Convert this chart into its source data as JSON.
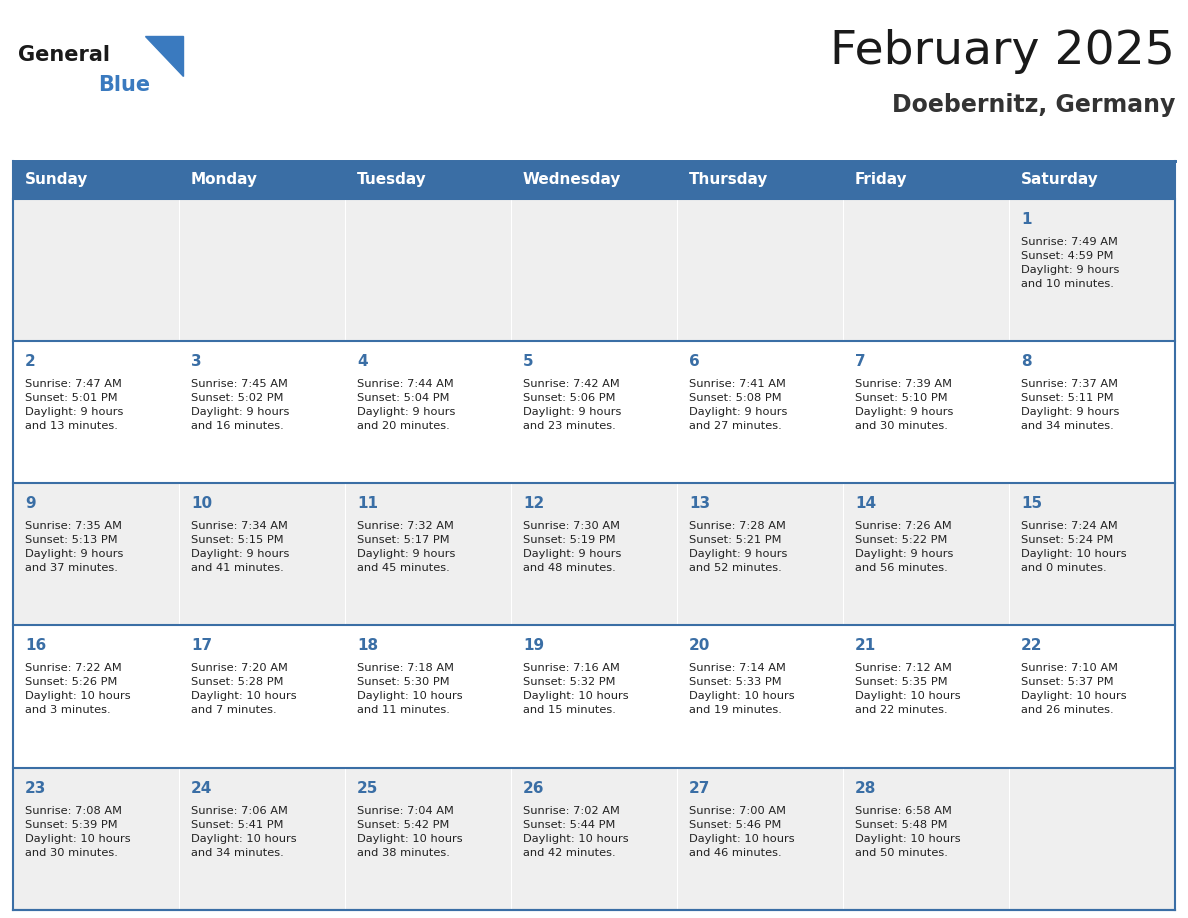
{
  "title": "February 2025",
  "subtitle": "Doebernitz, Germany",
  "days_of_week": [
    "Sunday",
    "Monday",
    "Tuesday",
    "Wednesday",
    "Thursday",
    "Friday",
    "Saturday"
  ],
  "header_bg": "#3a6ea5",
  "header_text": "#FFFFFF",
  "cell_bg_light": "#EFEFEF",
  "cell_bg_white": "#FFFFFF",
  "cell_border": "#3a6ea5",
  "day_number_color": "#3a6ea5",
  "text_color": "#222222",
  "logo_general_color": "#1a1a1a",
  "logo_blue_color": "#3a7abf",
  "logo_triangle_color": "#3a7abf",
  "title_color": "#1a1a1a",
  "subtitle_color": "#333333",
  "calendar": [
    [
      null,
      null,
      null,
      null,
      null,
      null,
      1
    ],
    [
      2,
      3,
      4,
      5,
      6,
      7,
      8
    ],
    [
      9,
      10,
      11,
      12,
      13,
      14,
      15
    ],
    [
      16,
      17,
      18,
      19,
      20,
      21,
      22
    ],
    [
      23,
      24,
      25,
      26,
      27,
      28,
      null
    ]
  ],
  "sunrise_data": {
    "1": "Sunrise: 7:49 AM\nSunset: 4:59 PM\nDaylight: 9 hours\nand 10 minutes.",
    "2": "Sunrise: 7:47 AM\nSunset: 5:01 PM\nDaylight: 9 hours\nand 13 minutes.",
    "3": "Sunrise: 7:45 AM\nSunset: 5:02 PM\nDaylight: 9 hours\nand 16 minutes.",
    "4": "Sunrise: 7:44 AM\nSunset: 5:04 PM\nDaylight: 9 hours\nand 20 minutes.",
    "5": "Sunrise: 7:42 AM\nSunset: 5:06 PM\nDaylight: 9 hours\nand 23 minutes.",
    "6": "Sunrise: 7:41 AM\nSunset: 5:08 PM\nDaylight: 9 hours\nand 27 minutes.",
    "7": "Sunrise: 7:39 AM\nSunset: 5:10 PM\nDaylight: 9 hours\nand 30 minutes.",
    "8": "Sunrise: 7:37 AM\nSunset: 5:11 PM\nDaylight: 9 hours\nand 34 minutes.",
    "9": "Sunrise: 7:35 AM\nSunset: 5:13 PM\nDaylight: 9 hours\nand 37 minutes.",
    "10": "Sunrise: 7:34 AM\nSunset: 5:15 PM\nDaylight: 9 hours\nand 41 minutes.",
    "11": "Sunrise: 7:32 AM\nSunset: 5:17 PM\nDaylight: 9 hours\nand 45 minutes.",
    "12": "Sunrise: 7:30 AM\nSunset: 5:19 PM\nDaylight: 9 hours\nand 48 minutes.",
    "13": "Sunrise: 7:28 AM\nSunset: 5:21 PM\nDaylight: 9 hours\nand 52 minutes.",
    "14": "Sunrise: 7:26 AM\nSunset: 5:22 PM\nDaylight: 9 hours\nand 56 minutes.",
    "15": "Sunrise: 7:24 AM\nSunset: 5:24 PM\nDaylight: 10 hours\nand 0 minutes.",
    "16": "Sunrise: 7:22 AM\nSunset: 5:26 PM\nDaylight: 10 hours\nand 3 minutes.",
    "17": "Sunrise: 7:20 AM\nSunset: 5:28 PM\nDaylight: 10 hours\nand 7 minutes.",
    "18": "Sunrise: 7:18 AM\nSunset: 5:30 PM\nDaylight: 10 hours\nand 11 minutes.",
    "19": "Sunrise: 7:16 AM\nSunset: 5:32 PM\nDaylight: 10 hours\nand 15 minutes.",
    "20": "Sunrise: 7:14 AM\nSunset: 5:33 PM\nDaylight: 10 hours\nand 19 minutes.",
    "21": "Sunrise: 7:12 AM\nSunset: 5:35 PM\nDaylight: 10 hours\nand 22 minutes.",
    "22": "Sunrise: 7:10 AM\nSunset: 5:37 PM\nDaylight: 10 hours\nand 26 minutes.",
    "23": "Sunrise: 7:08 AM\nSunset: 5:39 PM\nDaylight: 10 hours\nand 30 minutes.",
    "24": "Sunrise: 7:06 AM\nSunset: 5:41 PM\nDaylight: 10 hours\nand 34 minutes.",
    "25": "Sunrise: 7:04 AM\nSunset: 5:42 PM\nDaylight: 10 hours\nand 38 minutes.",
    "26": "Sunrise: 7:02 AM\nSunset: 5:44 PM\nDaylight: 10 hours\nand 42 minutes.",
    "27": "Sunrise: 7:00 AM\nSunset: 5:46 PM\nDaylight: 10 hours\nand 46 minutes.",
    "28": "Sunrise: 6:58 AM\nSunset: 5:48 PM\nDaylight: 10 hours\nand 50 minutes."
  }
}
